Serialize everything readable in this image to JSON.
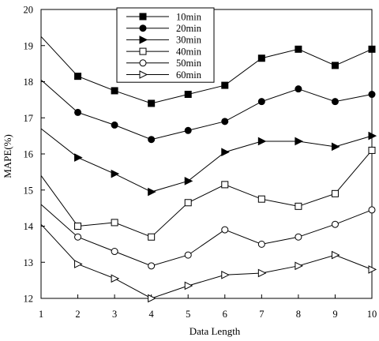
{
  "chart_data": {
    "type": "line",
    "title": "",
    "xlabel": "Data Length",
    "ylabel": "MAPE(%)",
    "x": [
      1,
      2,
      3,
      4,
      5,
      6,
      7,
      8,
      9,
      10
    ],
    "xlim": [
      1,
      10
    ],
    "ylim": [
      12,
      20
    ],
    "x_ticks": [
      1,
      2,
      3,
      4,
      5,
      6,
      7,
      8,
      9,
      10
    ],
    "y_ticks": [
      12,
      13,
      14,
      15,
      16,
      17,
      18,
      19,
      20
    ],
    "grid": false,
    "legend_position": "top-center",
    "series": [
      {
        "name": "10min",
        "marker": "filled-square",
        "values": [
          19.25,
          18.15,
          17.75,
          17.4,
          17.65,
          17.9,
          18.65,
          18.9,
          18.45,
          18.9
        ]
      },
      {
        "name": "20min",
        "marker": "filled-circle",
        "values": [
          18.05,
          17.15,
          16.8,
          16.4,
          16.65,
          16.9,
          17.45,
          17.8,
          17.45,
          17.65
        ]
      },
      {
        "name": "30min",
        "marker": "filled-triangle-right",
        "values": [
          16.7,
          15.9,
          15.45,
          14.95,
          15.25,
          16.05,
          16.35,
          16.35,
          16.2,
          16.5
        ]
      },
      {
        "name": "40min",
        "marker": "open-square",
        "values": [
          15.4,
          14.0,
          14.1,
          13.7,
          14.65,
          15.15,
          14.75,
          14.55,
          14.9,
          16.1
        ]
      },
      {
        "name": "50min",
        "marker": "open-circle",
        "values": [
          14.6,
          13.7,
          13.3,
          12.9,
          13.2,
          13.9,
          13.5,
          13.7,
          14.05,
          14.45
        ]
      },
      {
        "name": "60min",
        "marker": "open-triangle-right",
        "values": [
          14.05,
          12.95,
          12.55,
          12.0,
          12.35,
          12.65,
          12.7,
          12.9,
          13.2,
          12.8
        ]
      }
    ]
  }
}
